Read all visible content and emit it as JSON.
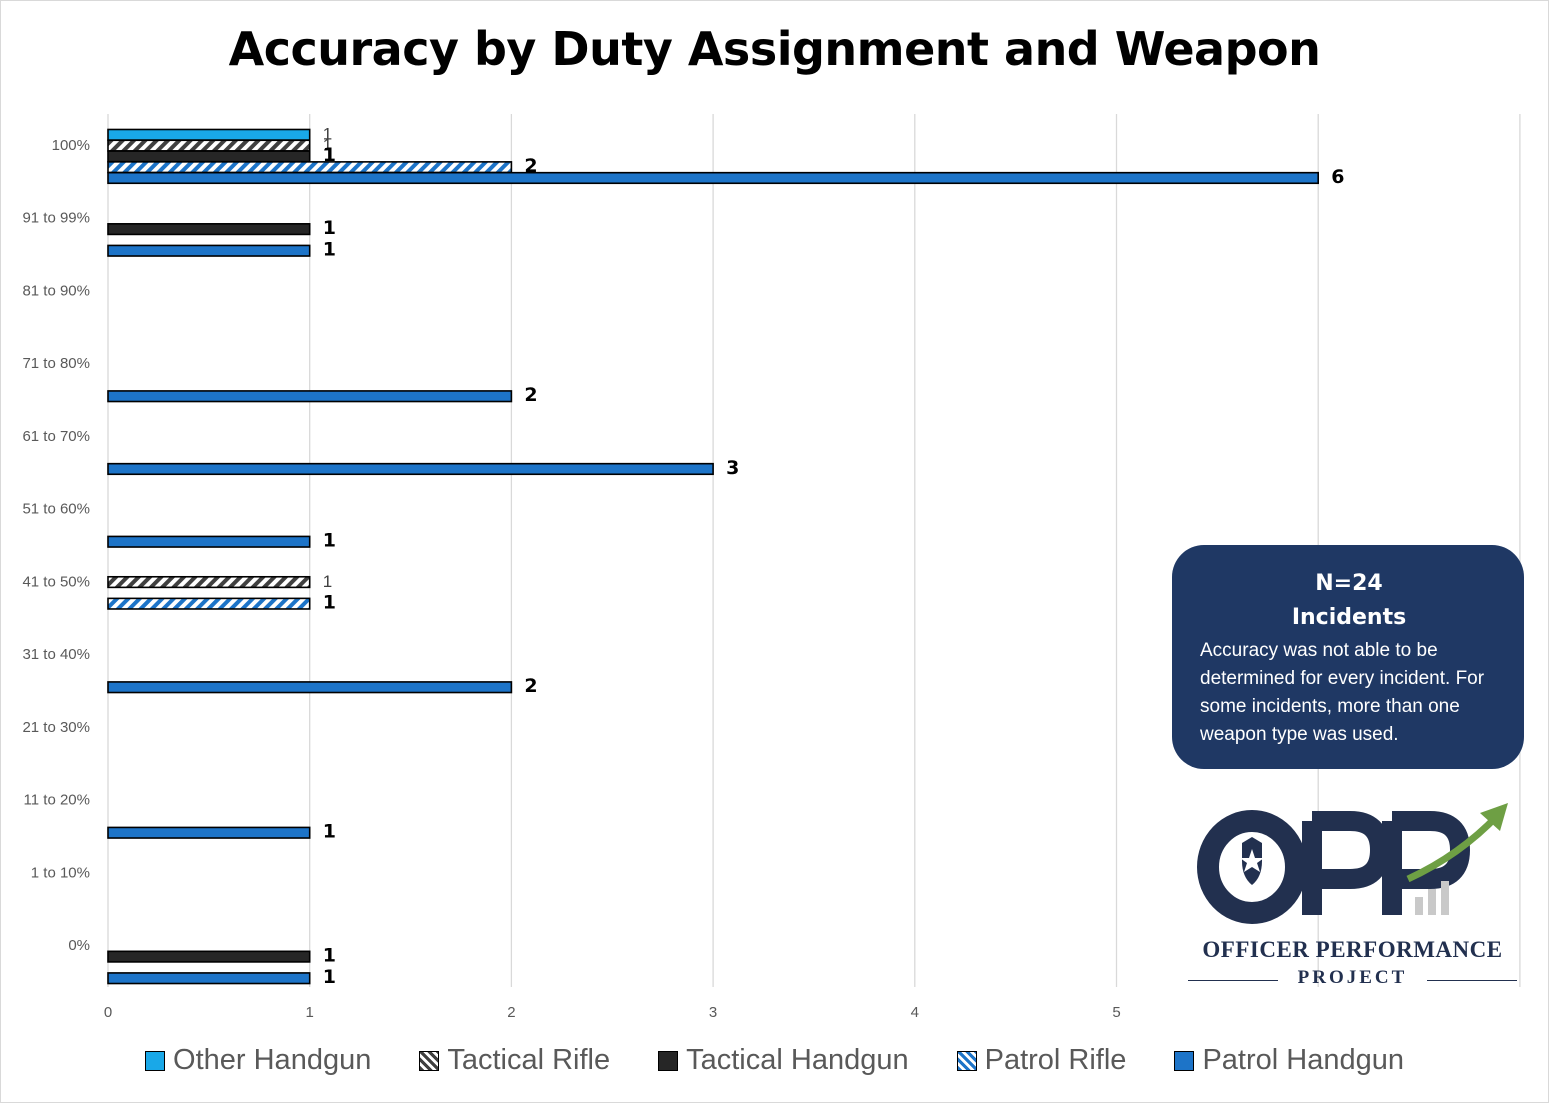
{
  "colors": {
    "patrol_handgun": "#1d74c8",
    "patrol_rifle": "#1d74c8",
    "tactical_handgun": "#262626",
    "tactical_rifle": "#404040",
    "other_handgun": "#19a8e8",
    "grid": "#d9d9d9",
    "note_bg": "#1f3864",
    "logo_navy": "#22304f",
    "logo_green": "#6e9f44"
  },
  "chart_data": {
    "type": "bar",
    "orientation": "horizontal",
    "title": "Accuracy by Duty Assignment and Weapon",
    "categories": [
      "100%",
      "91 to 99%",
      "81 to 90%",
      "71 to 80%",
      "61 to 70%",
      "51 to 60%",
      "41 to 50%",
      "31 to 40%",
      "21 to 30%",
      "11 to 20%",
      "1 to 10%",
      "0%"
    ],
    "x_ticks": [
      "0",
      "1",
      "2",
      "3",
      "4",
      "5"
    ],
    "xlim": [
      0,
      7
    ],
    "grid": true,
    "legend_position": "bottom",
    "series": [
      {
        "name": "Other Handgun",
        "key": "other_handgun",
        "pattern": "solid",
        "values": [
          1,
          null,
          null,
          null,
          null,
          null,
          null,
          null,
          null,
          null,
          null,
          null
        ],
        "labels": [
          "1",
          null,
          null,
          null,
          null,
          null,
          null,
          null,
          null,
          null,
          null,
          null
        ]
      },
      {
        "name": "Tactical Rifle",
        "key": "tactical_rifle",
        "pattern": "hatch-dark",
        "values": [
          1,
          null,
          null,
          null,
          null,
          null,
          1,
          null,
          null,
          null,
          null,
          null
        ],
        "labels": [
          "1",
          null,
          null,
          null,
          null,
          null,
          "1",
          null,
          null,
          null,
          null,
          null
        ]
      },
      {
        "name": "Tactical Handgun",
        "key": "tactical_handgun",
        "pattern": "solid",
        "values": [
          1,
          1,
          null,
          null,
          null,
          null,
          null,
          null,
          null,
          null,
          null,
          1
        ],
        "labels": [
          "1",
          "1",
          null,
          null,
          null,
          null,
          null,
          null,
          null,
          null,
          null,
          "1"
        ]
      },
      {
        "name": "Patrol Rifle",
        "key": "patrol_rifle",
        "pattern": "hatch-blue",
        "values": [
          2,
          null,
          null,
          null,
          null,
          null,
          1,
          null,
          null,
          null,
          null,
          null
        ],
        "labels": [
          "2",
          null,
          null,
          null,
          null,
          null,
          "1",
          null,
          null,
          null,
          null,
          null
        ]
      },
      {
        "name": "Patrol Handgun",
        "key": "patrol_handgun",
        "pattern": "solid",
        "values": [
          6,
          1,
          null,
          2,
          3,
          1,
          null,
          2,
          null,
          1,
          null,
          1
        ],
        "labels": [
          "6",
          "1",
          null,
          "2",
          "3",
          "1",
          null,
          "2",
          null,
          "1",
          null,
          "1"
        ]
      }
    ]
  },
  "note": {
    "line1": "N=24",
    "line2": "Incidents",
    "body": "Accuracy was not able to be determined for every incident. For some incidents, more than one weapon type was used."
  },
  "logo": {
    "letters": "OPP",
    "line1": "OFFICER PERFORMANCE",
    "line2": "PROJECT"
  }
}
